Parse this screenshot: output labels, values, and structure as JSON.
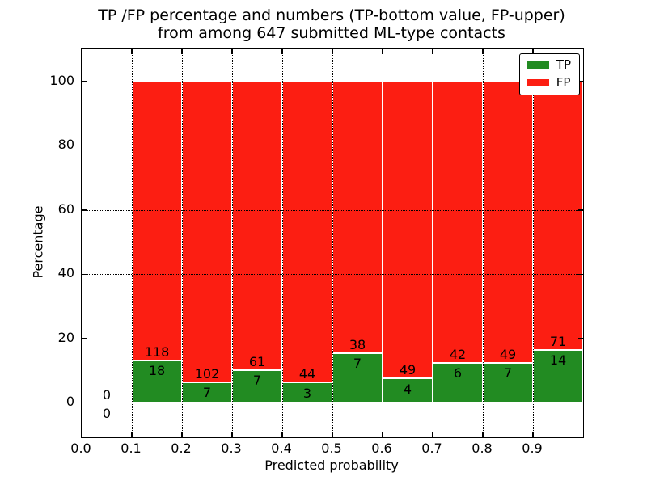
{
  "title": {
    "line1": "TP /FP percentage and numbers (TP-bottom value, FP-upper)",
    "line2": "from among 647 submitted ML-type contacts"
  },
  "chart_data": {
    "type": "bar",
    "stacked": true,
    "title": "TP /FP percentage and numbers (TP-bottom value, FP-upper) from among 647 submitted ML-type contacts",
    "xlabel": "Predicted probability",
    "ylabel": "Percentage",
    "xlim": [
      0.0,
      1.0
    ],
    "ylim": [
      -10.7,
      110
    ],
    "x_ticks": [
      0.0,
      0.1,
      0.2,
      0.3,
      0.4,
      0.5,
      0.6,
      0.7,
      0.8,
      0.9
    ],
    "y_ticks": [
      0,
      20,
      40,
      60,
      80,
      100
    ],
    "grid": "dotted, drawn above bars",
    "total_contacts": 647,
    "series_note": "each bin stacks to 100%; green = TP/(TP+FP)*100, red = remainder; labels show raw counts (TP lower number, FP upper number)",
    "bins": [
      {
        "start": 0.0,
        "end": 0.1,
        "tp": 0,
        "fp": 0,
        "tp_pct": 0.0,
        "fp_pct": 0.0
      },
      {
        "start": 0.1,
        "end": 0.2,
        "tp": 18,
        "fp": 118,
        "tp_pct": 13.24,
        "fp_pct": 86.76
      },
      {
        "start": 0.2,
        "end": 0.3,
        "tp": 7,
        "fp": 102,
        "tp_pct": 6.42,
        "fp_pct": 93.58
      },
      {
        "start": 0.3,
        "end": 0.4,
        "tp": 7,
        "fp": 61,
        "tp_pct": 10.29,
        "fp_pct": 89.71
      },
      {
        "start": 0.4,
        "end": 0.5,
        "tp": 3,
        "fp": 44,
        "tp_pct": 6.38,
        "fp_pct": 93.62
      },
      {
        "start": 0.5,
        "end": 0.6,
        "tp": 7,
        "fp": 38,
        "tp_pct": 15.56,
        "fp_pct": 84.44
      },
      {
        "start": 0.6,
        "end": 0.7,
        "tp": 4,
        "fp": 49,
        "tp_pct": 7.55,
        "fp_pct": 92.45
      },
      {
        "start": 0.7,
        "end": 0.8,
        "tp": 6,
        "fp": 42,
        "tp_pct": 12.5,
        "fp_pct": 87.5
      },
      {
        "start": 0.8,
        "end": 0.9,
        "tp": 7,
        "fp": 49,
        "tp_pct": 12.5,
        "fp_pct": 87.5
      },
      {
        "start": 0.9,
        "end": 1.0,
        "tp": 14,
        "fp": 71,
        "tp_pct": 16.47,
        "fp_pct": 83.53
      }
    ],
    "legend": {
      "position": "upper-right",
      "entries": [
        {
          "label": "TP",
          "color": "#228b22"
        },
        {
          "label": "FP",
          "color": "#fc1e12"
        }
      ]
    },
    "colors": {
      "tp_green": "#228b22",
      "fp_red": "#fc1e12",
      "bar_edge": "#ffffff",
      "grid": "#000000",
      "background": "#ffffff"
    }
  }
}
